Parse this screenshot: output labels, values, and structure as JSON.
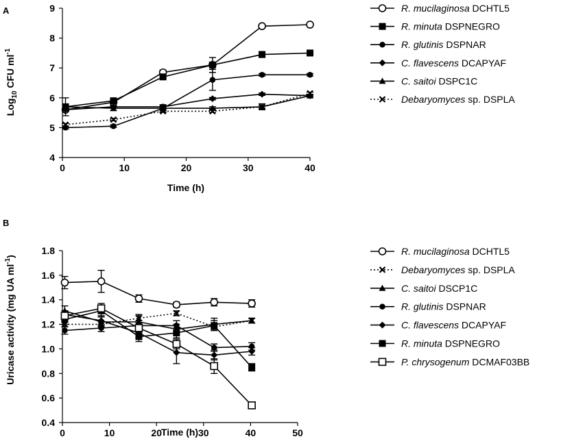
{
  "chart_data": [
    {
      "panel": "A",
      "type": "line",
      "xlabel": "Time (h)",
      "ylabel": "Log10 CFU ml-1",
      "ylabel_parts": {
        "pre": "Log",
        "sub": "10",
        "mid": " CFU ml",
        "sup": "-1"
      },
      "xlim": [
        0,
        40
      ],
      "ylim": [
        4,
        9
      ],
      "xticks": [
        0,
        10,
        20,
        30,
        40
      ],
      "yticks": [
        4,
        5,
        6,
        7,
        8,
        9
      ],
      "x": [
        0.5,
        8.25,
        16.25,
        24.25,
        32.25,
        40
      ],
      "series": [
        {
          "name": "R. mucilaginosa DCHTL5",
          "italic": "R. mucilaginosa",
          "rest": " DCHTL5",
          "marker": "open-circle",
          "dash": false,
          "values": [
            5.6,
            5.85,
            6.85,
            7.1,
            8.4,
            8.45
          ],
          "err": [
            0.05,
            0.05,
            0.08,
            0.05,
            0.04,
            0.05
          ]
        },
        {
          "name": "R. minuta DSPNEGRO",
          "italic": "R. minuta",
          "rest": " DSPNEGRO",
          "marker": "square",
          "dash": false,
          "values": [
            5.7,
            5.9,
            6.7,
            7.1,
            7.45,
            7.5
          ],
          "err": [
            0.05,
            0.05,
            0.05,
            0.25,
            0.1,
            0.04
          ]
        },
        {
          "name": "R. glutinis DSPNAR",
          "italic": "R. glutinis",
          "rest": " DSPNAR",
          "marker": "circle",
          "dash": false,
          "values": [
            5.0,
            5.05,
            5.65,
            6.6,
            6.77,
            6.77
          ],
          "err": [
            0.05,
            0.04,
            0.05,
            0.35,
            0.04,
            0.04
          ]
        },
        {
          "name": "C. flavescens DCAPYAF",
          "italic": "C. flavescens",
          "rest": "  DCAPYAF",
          "marker": "diamond",
          "dash": false,
          "values": [
            5.6,
            5.7,
            5.7,
            5.97,
            6.12,
            6.07
          ],
          "err": [
            0.05,
            0.04,
            0.04,
            0.04,
            0.04,
            0.04
          ]
        },
        {
          "name": "C. saitoi DSPC1C",
          "italic": "C. saitoi",
          "rest": " DSPC1C",
          "marker": "triangle",
          "dash": false,
          "values": [
            5.7,
            5.65,
            5.65,
            5.65,
            5.7,
            6.07
          ],
          "err": [
            0.3,
            0.08,
            0.12,
            0.05,
            0.1,
            0.04
          ]
        },
        {
          "name": "Debaryomyces sp. DSPLA",
          "italic": "Debaryomyces",
          "rest": " sp. DSPLA",
          "marker": "cross",
          "dash": true,
          "values": [
            5.1,
            5.27,
            5.55,
            5.55,
            5.7,
            6.15
          ],
          "err": [
            0.04,
            0.04,
            0.04,
            0.04,
            0.04,
            0.04
          ]
        }
      ]
    },
    {
      "panel": "B",
      "type": "line",
      "xlabel": "Time (h)",
      "ylabel": "Uricase activity (mg UA ml-1)",
      "ylabel_parts": {
        "pre": "Uricase activity (mg UA ml",
        "sup": "-1",
        "post": ")"
      },
      "xlim": [
        0,
        50
      ],
      "ylim": [
        0.4,
        1.8
      ],
      "xticks": [
        0,
        10,
        20,
        30,
        40,
        50
      ],
      "yticks": [
        0.4,
        0.6,
        0.8,
        1.0,
        1.2,
        1.4,
        1.6,
        1.8
      ],
      "ytick_labels": [
        "0.4",
        "0.6",
        "0.8",
        "1.0",
        "1.2",
        "1.4",
        "1.6",
        "1.8"
      ],
      "x": [
        0.5,
        8.25,
        16.25,
        24.25,
        32.25,
        40.25
      ],
      "series": [
        {
          "name": "R. mucilaginosa DCHTL5",
          "italic": "R. mucilaginosa",
          "rest": " DCHTL5",
          "marker": "open-circle",
          "dash": false,
          "values": [
            1.54,
            1.55,
            1.41,
            1.36,
            1.38,
            1.37
          ],
          "err": [
            0.05,
            0.09,
            0.03,
            0.02,
            0.03,
            0.03
          ]
        },
        {
          "name": "Debaryomyces sp. DSPLA",
          "italic": "Debaryomyces",
          "rest": " sp. DSPLA",
          "marker": "cross",
          "dash": true,
          "values": [
            1.2,
            1.2,
            1.25,
            1.29,
            1.18,
            1.23
          ],
          "err": [
            0.02,
            0.02,
            0.02,
            0.02,
            0.02,
            0.02
          ]
        },
        {
          "name": "C. saitoi DSCP1C",
          "italic": "C. saitoi",
          "rest": " DSCP1C",
          "marker": "triangle",
          "dash": false,
          "values": [
            1.31,
            1.22,
            1.22,
            1.16,
            1.2,
            1.23
          ],
          "err": [
            0.04,
            0.04,
            0.06,
            0.04,
            0.05,
            0.02
          ]
        },
        {
          "name": "R. glutinis DSPNAR",
          "italic": "R. glutinis",
          "rest": " DSPNAR",
          "marker": "circle",
          "dash": false,
          "values": [
            1.15,
            1.17,
            1.19,
            1.19,
            1.01,
            1.02
          ],
          "err": [
            0.03,
            0.03,
            0.04,
            0.04,
            0.03,
            0.03
          ]
        },
        {
          "name": "C. flavescens DCAPYAF",
          "italic": "C. flavescens",
          "rest": " DCAPYAF",
          "marker": "diamond",
          "dash": false,
          "values": [
            1.28,
            1.23,
            1.13,
            0.97,
            0.95,
            0.98
          ],
          "err": [
            0.03,
            0.04,
            0.04,
            0.09,
            0.04,
            0.03
          ]
        },
        {
          "name": "R. minuta DSPNEGRO",
          "italic": "R. minuta",
          "rest": " DSPNEGRO",
          "marker": "square",
          "dash": false,
          "values": [
            1.24,
            1.31,
            1.1,
            1.13,
            1.19,
            0.85
          ],
          "err": [
            0.04,
            0.04,
            0.04,
            0.04,
            0.04,
            0.03
          ]
        },
        {
          "name": "P. chrysogenum DCMAF03BB",
          "italic": "P. chrysogenum",
          "rest": " DCMAF03BB",
          "marker": "open-square",
          "dash": false,
          "values": [
            1.27,
            1.33,
            1.17,
            1.04,
            0.86,
            0.54
          ],
          "err": [
            0.04,
            0.04,
            0.04,
            0.04,
            0.06,
            0.02
          ]
        }
      ]
    }
  ]
}
